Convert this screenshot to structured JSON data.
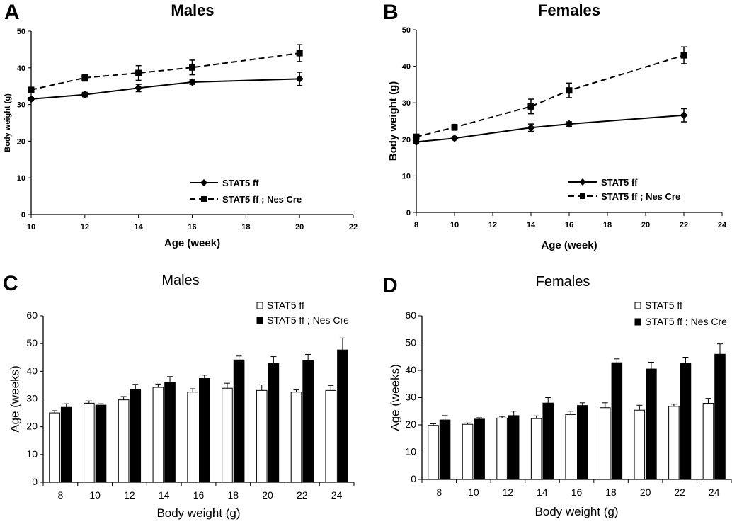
{
  "chart_data": [
    {
      "panel": "A",
      "type": "line",
      "title": "Males",
      "xlabel": "Age (week)",
      "ylabel": "Body weight (g)",
      "xlim": [
        10,
        22
      ],
      "ylim": [
        0,
        50
      ],
      "xticks": [
        10,
        12,
        14,
        16,
        18,
        20,
        22
      ],
      "yticks": [
        0,
        10,
        20,
        30,
        40,
        50
      ],
      "legend_position": "bottom-right",
      "series": [
        {
          "name": "STAT5 ff",
          "style": "solid",
          "marker": "diamond",
          "x": [
            10,
            12,
            14,
            16,
            20
          ],
          "values": [
            31.5,
            32.7,
            34.5,
            36.1,
            37.0
          ],
          "errors": [
            0.4,
            0.6,
            1.0,
            0.6,
            1.8
          ]
        },
        {
          "name": "STAT5 ff ; Nes Cre",
          "style": "dashed",
          "marker": "square",
          "x": [
            10,
            12,
            14,
            16,
            20
          ],
          "values": [
            34.0,
            37.3,
            38.6,
            40.1,
            44.0
          ],
          "errors": [
            0.4,
            0.9,
            2.0,
            2.0,
            2.3
          ]
        }
      ]
    },
    {
      "panel": "B",
      "type": "line",
      "title": "Females",
      "xlabel": "Age (week)",
      "ylabel": "Body weight (g)",
      "xlim": [
        8,
        24
      ],
      "ylim": [
        0,
        50
      ],
      "xticks": [
        8,
        10,
        12,
        14,
        16,
        18,
        20,
        22,
        24
      ],
      "yticks": [
        0,
        10,
        20,
        30,
        40,
        50
      ],
      "legend_position": "bottom-right",
      "series": [
        {
          "name": "STAT5 ff",
          "style": "solid",
          "marker": "diamond",
          "x": [
            8,
            10,
            14,
            16,
            22
          ],
          "values": [
            19.3,
            20.3,
            23.2,
            24.2,
            26.6
          ],
          "errors": [
            0.5,
            0.5,
            1.0,
            0.6,
            1.8
          ]
        },
        {
          "name": "STAT5 ff ; Nes Cre",
          "style": "dashed",
          "marker": "square",
          "x": [
            8,
            10,
            14,
            16,
            22
          ],
          "values": [
            20.7,
            23.3,
            29.0,
            33.4,
            43.0
          ],
          "errors": [
            0.5,
            0.8,
            2.0,
            2.0,
            2.3
          ]
        }
      ]
    },
    {
      "panel": "C",
      "type": "bar",
      "title": "Males",
      "xlabel": "Body weight (g)",
      "ylabel": "Age (weeks)",
      "ylim": [
        0,
        60
      ],
      "yticks": [
        0,
        10,
        20,
        30,
        40,
        50,
        60
      ],
      "categories": [
        "8",
        "10",
        "12",
        "14",
        "16",
        "18",
        "20",
        "22",
        "24"
      ],
      "legend_position": "top-right",
      "series": [
        {
          "name": "STAT5 ff",
          "color": "#ffffff",
          "values": [
            25.0,
            28.5,
            29.7,
            34.2,
            32.5,
            33.9,
            33.1,
            32.5,
            33.1
          ],
          "errors": [
            0.8,
            0.8,
            1.2,
            1.2,
            1.2,
            1.8,
            2.0,
            0.8,
            1.8
          ]
        },
        {
          "name": "STAT5 ff ; Nes Cre",
          "color": "#000000",
          "values": [
            27.0,
            27.8,
            33.5,
            36.1,
            37.4,
            44.1,
            42.8,
            43.9,
            47.7
          ],
          "errors": [
            1.3,
            0.5,
            1.8,
            2.0,
            1.2,
            1.4,
            2.5,
            2.2,
            4.3
          ]
        }
      ]
    },
    {
      "panel": "D",
      "type": "bar",
      "title": "Females",
      "xlabel": "Body weight (g)",
      "ylabel": "Age (weeks)",
      "ylim": [
        0,
        60
      ],
      "yticks": [
        0,
        10,
        20,
        30,
        40,
        50,
        60
      ],
      "categories": [
        "8",
        "10",
        "12",
        "14",
        "16",
        "18",
        "20",
        "22",
        "24"
      ],
      "legend_position": "top-right",
      "series": [
        {
          "name": "STAT5 ff",
          "color": "#ffffff",
          "values": [
            19.8,
            20.2,
            22.5,
            22.3,
            23.8,
            26.3,
            25.4,
            26.8,
            27.9
          ],
          "errors": [
            0.6,
            0.5,
            0.6,
            1.0,
            1.2,
            1.8,
            1.8,
            0.8,
            1.8
          ]
        },
        {
          "name": "STAT5 ff ; Nes Cre",
          "color": "#000000",
          "values": [
            21.8,
            22.1,
            23.4,
            28.0,
            27.1,
            42.8,
            40.5,
            42.6,
            45.9
          ],
          "errors": [
            1.6,
            0.5,
            1.6,
            2.0,
            1.0,
            1.4,
            2.5,
            2.2,
            3.8
          ]
        }
      ]
    }
  ]
}
